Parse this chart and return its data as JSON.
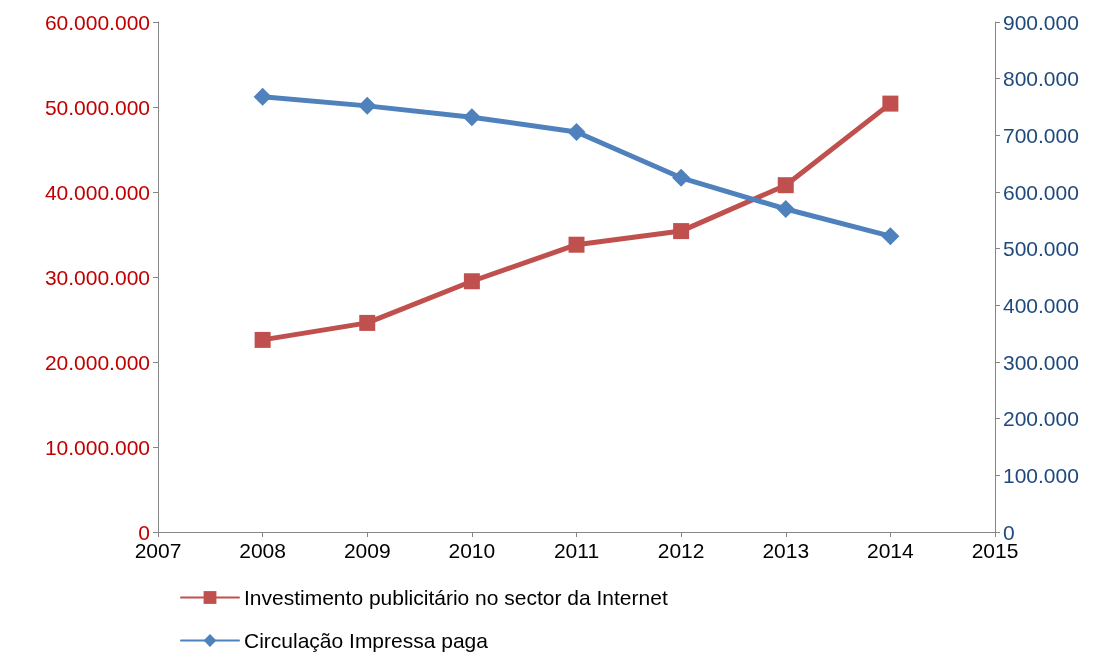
{
  "chart_data": {
    "type": "line",
    "x": [
      2008,
      2009,
      2010,
      2011,
      2012,
      2013,
      2014
    ],
    "series": [
      {
        "name": "Investimento publicitário no sector da Internet",
        "color": "#c0504d",
        "marker": "square",
        "values": [
          22600000,
          24600000,
          29500000,
          33800000,
          35400000,
          40800000,
          50400000
        ]
      },
      {
        "name": "Circulação Impressa paga",
        "color": "#4f81bd",
        "marker": "diamond",
        "axis": "y2",
        "values": [
          768000,
          752000,
          732000,
          706000,
          625000,
          570000,
          522000
        ]
      }
    ],
    "xlim": [
      2007,
      2015
    ],
    "xticks": [
      2007,
      2008,
      2009,
      2010,
      2011,
      2012,
      2013,
      2014,
      2015
    ],
    "ylim": [
      0,
      60000000
    ],
    "yticks": [
      {
        "value": 0,
        "label": "0"
      },
      {
        "value": 10000000,
        "label": "10.000.000"
      },
      {
        "value": 20000000,
        "label": "20.000.000"
      },
      {
        "value": 30000000,
        "label": "30.000.000"
      },
      {
        "value": 40000000,
        "label": "40.000.000"
      },
      {
        "value": 50000000,
        "label": "50.000.000"
      },
      {
        "value": 60000000,
        "label": "60.000.000"
      }
    ],
    "y2lim": [
      0,
      900000
    ],
    "y2ticks": [
      {
        "value": 0,
        "label": "0"
      },
      {
        "value": 100000,
        "label": "100.000"
      },
      {
        "value": 200000,
        "label": "200.000"
      },
      {
        "value": 300000,
        "label": "300.000"
      },
      {
        "value": 400000,
        "label": "400.000"
      },
      {
        "value": 500000,
        "label": "500.000"
      },
      {
        "value": 600000,
        "label": "600.000"
      },
      {
        "value": 700000,
        "label": "700.000"
      },
      {
        "value": 800000,
        "label": "800.000"
      },
      {
        "value": 900000,
        "label": "900.000"
      }
    ],
    "grid": false,
    "legend": "bottom",
    "line_style": "solid"
  }
}
